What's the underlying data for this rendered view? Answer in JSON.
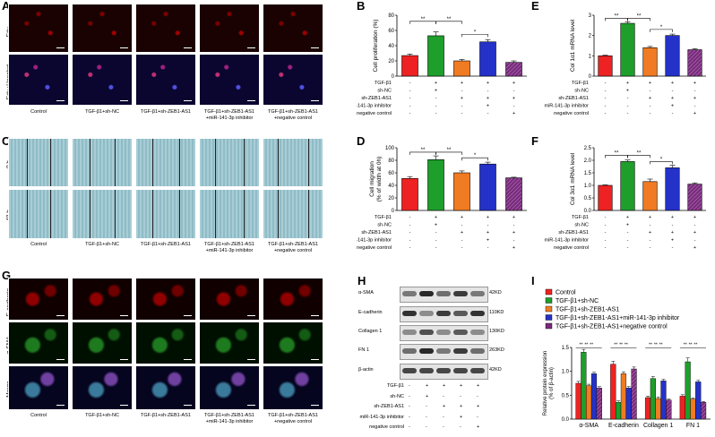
{
  "panels": {
    "A": "A",
    "B": "B",
    "C": "C",
    "D": "D",
    "E": "E",
    "F": "F",
    "G": "G",
    "H": "H",
    "I": "I"
  },
  "groups": [
    "Control",
    "TGF-β1+sh-NC",
    "TGF-β1+sh-ZEB1-AS1",
    "TGF-β1+sh-ZEB1-AS1\n+miR-141-3p inhibitor",
    "TGF-β1+sh-ZEB1-AS1\n+negative control"
  ],
  "row_labels": {
    "A": [
      "Edu",
      "Edu+Hoechst"
    ],
    "C": [
      "0 h",
      "48 h"
    ],
    "G": [
      "E-cadherin",
      "α-SMA",
      "Merge"
    ]
  },
  "colors": {
    "red": "#ee2222",
    "green": "#1e9e2a",
    "orange": "#f07b22",
    "blue": "#2432c9",
    "purple": "#7a2a7d"
  },
  "treatment_table": {
    "rows": [
      "TGF-β1",
      "sh-NC",
      "sh-ZEB1-AS1",
      "miR-141-3p inhibitor",
      "negative control"
    ],
    "signs": [
      [
        "-",
        "+",
        "+",
        "+",
        "+"
      ],
      [
        "-",
        "+",
        "-",
        "-",
        "-"
      ],
      [
        "-",
        "-",
        "+",
        "+",
        "+"
      ],
      [
        "-",
        "-",
        "-",
        "+",
        "-"
      ],
      [
        "-",
        "-",
        "-",
        "-",
        "+"
      ]
    ]
  },
  "blots": {
    "rows": [
      "α-SMA",
      "E-cadherin",
      "Collagen 1",
      "FN 1",
      "β-actin"
    ],
    "sizes": [
      "42KD",
      "110KD",
      "130KD",
      "263KD",
      "42KD"
    ],
    "intensities": [
      [
        0.55,
        0.95,
        0.6,
        0.85,
        0.55
      ],
      [
        0.9,
        0.45,
        0.85,
        0.7,
        0.9
      ],
      [
        0.45,
        0.75,
        0.45,
        0.7,
        0.45
      ],
      [
        0.6,
        0.95,
        0.55,
        0.85,
        0.6
      ],
      [
        0.8,
        0.8,
        0.8,
        0.8,
        0.8
      ]
    ]
  },
  "chart_data": [
    {
      "panel": "B",
      "type": "bar",
      "ylabel": "Cell proliferation (%)",
      "ylim": [
        0,
        80
      ],
      "yticks": [
        0,
        20,
        40,
        60,
        80
      ],
      "values": [
        27,
        53,
        20,
        45,
        18
      ],
      "errors": [
        2,
        5,
        2,
        3,
        2
      ],
      "sig": [
        {
          "a": 0,
          "b": 1,
          "label": "**",
          "level": 72
        },
        {
          "a": 1,
          "b": 2,
          "label": "**",
          "level": 72
        },
        {
          "a": 2,
          "b": 3,
          "label": "*",
          "level": 55
        }
      ]
    },
    {
      "panel": "E",
      "type": "bar",
      "ylabel": "Col 1α1 mRNA level",
      "ylim": [
        0,
        3
      ],
      "yticks": [
        0,
        1,
        2,
        3
      ],
      "values": [
        1.0,
        2.6,
        1.4,
        2.0,
        1.3
      ],
      "errors": [
        0.03,
        0.08,
        0.06,
        0.07,
        0.05
      ],
      "sig": [
        {
          "a": 0,
          "b": 1,
          "label": "**",
          "level": 2.85
        },
        {
          "a": 1,
          "b": 2,
          "label": "**",
          "level": 2.85
        },
        {
          "a": 2,
          "b": 3,
          "label": "*",
          "level": 2.3
        }
      ]
    },
    {
      "panel": "D",
      "type": "bar",
      "ylabel": "Cell migration\n(% of width at 0h)",
      "ylim": [
        0,
        100
      ],
      "yticks": [
        0,
        20,
        40,
        60,
        80,
        100
      ],
      "values": [
        51,
        81,
        60,
        74,
        52
      ],
      "errors": [
        3,
        6,
        3,
        3,
        1
      ],
      "sig": [
        {
          "a": 0,
          "b": 1,
          "label": "**",
          "level": 93
        },
        {
          "a": 1,
          "b": 2,
          "label": "**",
          "level": 93
        },
        {
          "a": 2,
          "b": 3,
          "label": "*",
          "level": 84
        }
      ]
    },
    {
      "panel": "F",
      "type": "bar",
      "ylabel": "Col 3α1 mRNA level",
      "ylim": [
        0,
        2.5
      ],
      "yticks": [
        0,
        0.5,
        1.0,
        1.5,
        2.0,
        2.5
      ],
      "values": [
        1.0,
        1.95,
        1.15,
        1.7,
        1.05
      ],
      "errors": [
        0.02,
        0.06,
        0.1,
        0.1,
        0.05
      ],
      "sig": [
        {
          "a": 0,
          "b": 1,
          "label": "**",
          "level": 2.2
        },
        {
          "a": 1,
          "b": 2,
          "label": "**",
          "level": 2.2
        },
        {
          "a": 2,
          "b": 3,
          "label": "*",
          "level": 1.95
        }
      ]
    },
    {
      "panel": "I",
      "type": "bar",
      "ylabel": "Relative protein expression\n(% of β-actin)",
      "ylim": [
        0,
        1.5
      ],
      "yticks": [
        0.0,
        0.5,
        1.0,
        1.5
      ],
      "categories": [
        "α-SMA",
        "E-cadherin",
        "Collagen 1",
        "FN 1"
      ],
      "series": [
        {
          "name": "Control",
          "values": [
            0.75,
            1.15,
            0.45,
            0.48
          ],
          "errors": [
            0.04,
            0.06,
            0.03,
            0.03
          ]
        },
        {
          "name": "TGF-β1+sh-NC",
          "values": [
            1.4,
            0.35,
            0.85,
            1.2
          ],
          "errors": [
            0.06,
            0.03,
            0.04,
            0.08
          ]
        },
        {
          "name": "TGF-β1+sh-ZEB1-AS1",
          "values": [
            0.7,
            0.95,
            0.43,
            0.42
          ],
          "errors": [
            0.03,
            0.04,
            0.03,
            0.02
          ]
        },
        {
          "name": "TGF-β1+sh-ZEB1-AS1+miR-141-3p inhibitor",
          "values": [
            0.95,
            0.65,
            0.8,
            0.78
          ],
          "errors": [
            0.03,
            0.03,
            0.03,
            0.03
          ]
        },
        {
          "name": "TGF-β1+sh-ZEB1-AS1+negative control",
          "values": [
            0.65,
            1.05,
            0.4,
            0.35
          ],
          "errors": [
            0.03,
            0.04,
            0.02,
            0.02
          ]
        }
      ],
      "sig_label": "**"
    }
  ]
}
